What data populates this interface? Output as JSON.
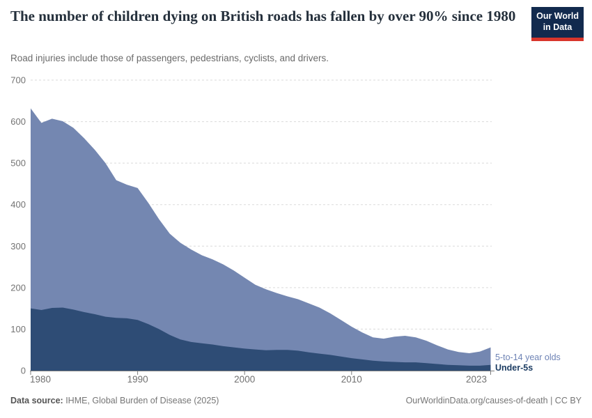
{
  "header": {
    "title": "The number of children dying on British roads has fallen by over 90% since 1980",
    "subtitle": "Road injuries include those of passengers, pedestrians, cyclists, and drivers.",
    "logo_line1": "Our World",
    "logo_line2": "in Data"
  },
  "footer": {
    "source_label": "Data source:",
    "source_text": " IHME, Global Burden of Disease (2025)",
    "attribution": "OurWorldinData.org/causes-of-death | CC BY"
  },
  "colors": {
    "under5_fill": "#2e4c75",
    "five14_fill": "#7487b1",
    "under5_label": "#1d3d63",
    "five14_label": "#6e83b5",
    "gridline": "#dadada",
    "axis": "#7d7d7d",
    "tick_label": "#737373",
    "logo_bg": "#122a4e",
    "logo_red": "#d8352c"
  },
  "chart_data": {
    "type": "area",
    "stacked": true,
    "title": "The number of children dying on British roads has fallen by over 90% since 1980",
    "xlabel": "",
    "ylabel": "",
    "ylim": [
      0,
      700
    ],
    "y_ticks": [
      0,
      100,
      200,
      300,
      400,
      500,
      600,
      700
    ],
    "x_ticks": [
      1980,
      1990,
      2000,
      2010,
      2023
    ],
    "grid": "horizontal-dashed",
    "legend_position": "right-of-last-point",
    "x": [
      1980,
      1981,
      1982,
      1983,
      1984,
      1985,
      1986,
      1987,
      1988,
      1989,
      1990,
      1991,
      1992,
      1993,
      1994,
      1995,
      1996,
      1997,
      1998,
      1999,
      2000,
      2001,
      2002,
      2003,
      2004,
      2005,
      2006,
      2007,
      2008,
      2009,
      2010,
      2011,
      2012,
      2013,
      2014,
      2015,
      2016,
      2017,
      2018,
      2019,
      2020,
      2021,
      2022,
      2023
    ],
    "series": [
      {
        "name": "Under-5s",
        "values": [
          150,
          146,
          151,
          152,
          147,
          141,
          136,
          130,
          127,
          126,
          122,
          112,
          100,
          86,
          75,
          69,
          66,
          63,
          59,
          56,
          53,
          51,
          49,
          50,
          50,
          48,
          44,
          41,
          38,
          34,
          30,
          27,
          24,
          22,
          21,
          20,
          20,
          18,
          16,
          14,
          13,
          12,
          12,
          14
        ]
      },
      {
        "name": "5-to-14 year olds",
        "values": [
          482,
          451,
          456,
          449,
          438,
          419,
          396,
          370,
          332,
          322,
          318,
          292,
          265,
          244,
          233,
          223,
          212,
          205,
          197,
          185,
          171,
          156,
          147,
          137,
          129,
          124,
          118,
          111,
          100,
          88,
          76,
          65,
          56,
          55,
          61,
          64,
          60,
          54,
          45,
          37,
          32,
          30,
          34,
          42
        ]
      }
    ]
  }
}
